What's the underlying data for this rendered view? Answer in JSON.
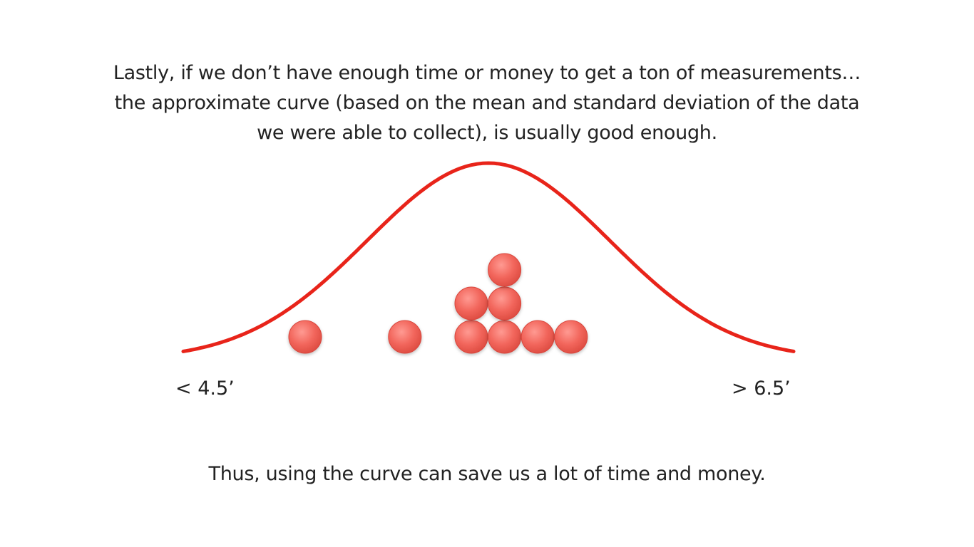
{
  "slide": {
    "intro_lines": [
      "Lastly, if we don’t have enough time or money to get a ton of measurements…",
      "the approximate curve (based on the mean and standard deviation of the data",
      "we were able to collect), is usually good enough."
    ],
    "outro": "Thus, using the curve can save us a lot of time and money."
  },
  "diagram": {
    "axis_left_label": "< 4.5’",
    "axis_right_label": "> 6.5’",
    "curve_color": "#e8241a",
    "dot_color": "#f06a61",
    "dot_stacks": [
      {
        "column": 0,
        "count": 1
      },
      {
        "column": 3,
        "count": 1
      },
      {
        "column": 5,
        "count": 2
      },
      {
        "column": 6,
        "count": 3
      },
      {
        "column": 7,
        "count": 1
      },
      {
        "column": 8,
        "count": 1
      }
    ]
  }
}
